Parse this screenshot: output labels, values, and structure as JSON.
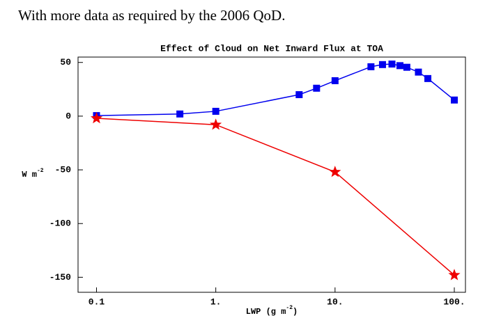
{
  "caption": "With more data as required by the 2006 QoD.",
  "chart_data": {
    "type": "line",
    "title": "Effect of Cloud on Net Inward Flux at TOA",
    "xlabel": [
      "LWP (g m",
      "-2",
      ")"
    ],
    "ylabel": [
      "W m",
      "-2"
    ],
    "xscale": "log",
    "xlim": [
      0.07,
      124
    ],
    "ylim": [
      -164,
      55
    ],
    "xticks": [
      0.1,
      {
        "value": 1,
        "label": "1."
      },
      {
        "value": 10,
        "label": "10."
      },
      {
        "value": 100,
        "label": "100."
      }
    ],
    "yticks": [
      50,
      0,
      -50,
      -100,
      -150
    ],
    "series": [
      {
        "color": "#0000ee",
        "marker": "square",
        "x": [
          0.1,
          0.5,
          1,
          5,
          7,
          10,
          20,
          25,
          30,
          35,
          40,
          50,
          60,
          100
        ],
        "values": [
          0.5,
          2,
          4.5,
          20,
          26,
          33,
          46,
          48,
          48.5,
          47,
          45.5,
          41,
          35,
          15
        ]
      },
      {
        "color": "#ee0000",
        "marker": "star",
        "x": [
          0.1,
          1,
          10,
          100
        ],
        "values": [
          -2,
          -8,
          -52,
          -148
        ]
      }
    ]
  }
}
